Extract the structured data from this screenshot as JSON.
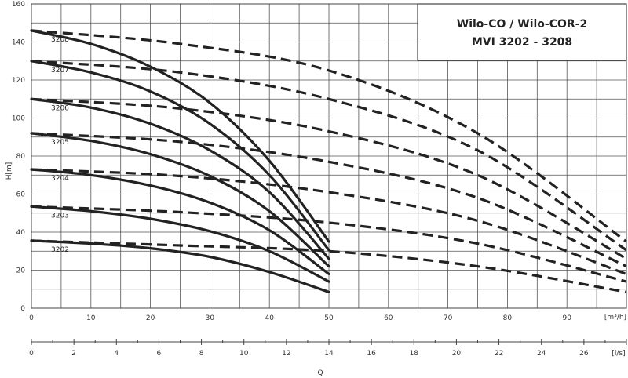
{
  "chart_data": {
    "type": "line",
    "title_lines": [
      "Wilo-CO / Wilo-COR-2",
      "MVI 3202 - 3208"
    ],
    "xlabel": "Q",
    "ylabel": "H[m]",
    "x_unit": "[m³/h]",
    "x2_unit": "[l/s]",
    "xlim": [
      0,
      100
    ],
    "ylim": [
      0,
      160
    ],
    "x2lim": [
      0,
      28
    ],
    "xticks": [
      0,
      10,
      20,
      30,
      40,
      50,
      60,
      70,
      80,
      90
    ],
    "yticks": [
      0,
      20,
      40,
      60,
      80,
      100,
      120,
      140,
      160
    ],
    "x2ticks": [
      0,
      2,
      4,
      6,
      8,
      10,
      12,
      14,
      16,
      18,
      20,
      22,
      24,
      26
    ],
    "grid": true,
    "single_pump_curves": [
      {
        "label": "3202",
        "points": [
          [
            0,
            35.5
          ],
          [
            10,
            34
          ],
          [
            20,
            31.5
          ],
          [
            30,
            27
          ],
          [
            40,
            19
          ],
          [
            50,
            8.5
          ]
        ]
      },
      {
        "label": "3203",
        "points": [
          [
            0,
            53.5
          ],
          [
            10,
            51
          ],
          [
            20,
            47
          ],
          [
            30,
            40.5
          ],
          [
            40,
            30
          ],
          [
            50,
            14
          ]
        ]
      },
      {
        "label": "3204",
        "points": [
          [
            0,
            73
          ],
          [
            10,
            70
          ],
          [
            20,
            64.5
          ],
          [
            30,
            55.5
          ],
          [
            40,
            41
          ],
          [
            50,
            18
          ]
        ]
      },
      {
        "label": "3205",
        "points": [
          [
            0,
            92
          ],
          [
            10,
            88
          ],
          [
            20,
            81
          ],
          [
            30,
            69.5
          ],
          [
            40,
            51
          ],
          [
            50,
            22
          ]
        ]
      },
      {
        "label": "3206",
        "points": [
          [
            0,
            110
          ],
          [
            10,
            105.5
          ],
          [
            20,
            97
          ],
          [
            30,
            83
          ],
          [
            40,
            61
          ],
          [
            50,
            26
          ]
        ]
      },
      {
        "label": "3207",
        "points": [
          [
            0,
            130
          ],
          [
            10,
            124
          ],
          [
            20,
            114
          ],
          [
            30,
            97
          ],
          [
            40,
            70
          ],
          [
            50,
            30.5
          ]
        ]
      },
      {
        "label": "3208",
        "points": [
          [
            0,
            146
          ],
          [
            10,
            139
          ],
          [
            20,
            127
          ],
          [
            30,
            108
          ],
          [
            40,
            77.5
          ],
          [
            50,
            35
          ]
        ]
      }
    ],
    "dual_pump_curves": [
      {
        "label": "3202",
        "points": [
          [
            0,
            35.5
          ],
          [
            25,
            33
          ],
          [
            50,
            30
          ],
          [
            75,
            22
          ],
          [
            100,
            8.5
          ]
        ]
      },
      {
        "label": "3203",
        "points": [
          [
            0,
            53.5
          ],
          [
            25,
            50.5
          ],
          [
            50,
            45
          ],
          [
            75,
            34
          ],
          [
            100,
            14
          ]
        ]
      },
      {
        "label": "3204",
        "points": [
          [
            0,
            73
          ],
          [
            25,
            69.5
          ],
          [
            50,
            61
          ],
          [
            75,
            46
          ],
          [
            100,
            18
          ]
        ]
      },
      {
        "label": "3205",
        "points": [
          [
            0,
            92
          ],
          [
            25,
            87.5
          ],
          [
            50,
            77
          ],
          [
            75,
            58
          ],
          [
            100,
            22
          ]
        ]
      },
      {
        "label": "3206",
        "points": [
          [
            0,
            110
          ],
          [
            25,
            105
          ],
          [
            50,
            93
          ],
          [
            75,
            70
          ],
          [
            100,
            26
          ]
        ]
      },
      {
        "label": "3207",
        "points": [
          [
            0,
            130
          ],
          [
            25,
            124
          ],
          [
            50,
            110
          ],
          [
            75,
            83
          ],
          [
            100,
            30.5
          ]
        ]
      },
      {
        "label": "3208",
        "points": [
          [
            0,
            146
          ],
          [
            25,
            139
          ],
          [
            50,
            125
          ],
          [
            75,
            92
          ],
          [
            100,
            35
          ]
        ]
      }
    ]
  }
}
